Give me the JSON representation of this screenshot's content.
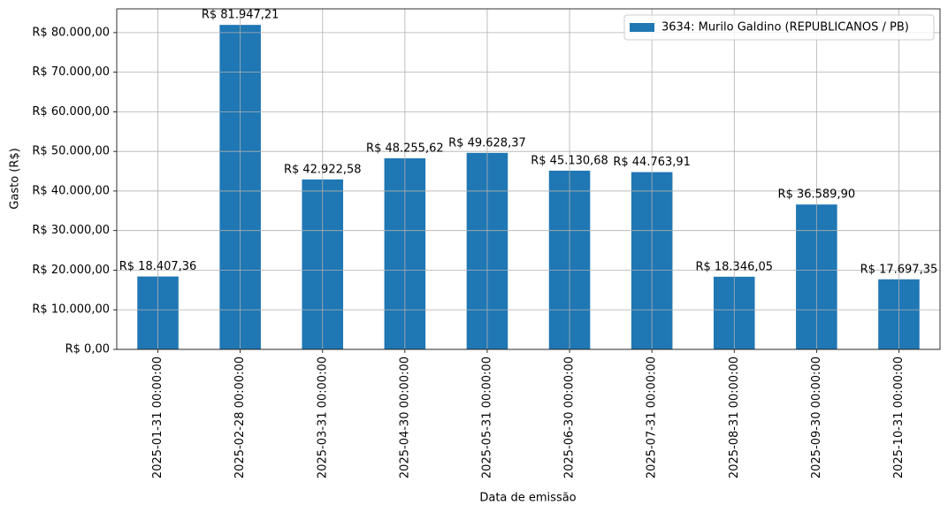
{
  "chart_data": {
    "type": "bar",
    "x_label": "Data de emissão",
    "y_label": "Gasto (R$)",
    "categories": [
      "2025-01-31 00:00:00",
      "2025-02-28 00:00:00",
      "2025-03-31 00:00:00",
      "2025-04-30 00:00:00",
      "2025-05-31 00:00:00",
      "2025-06-30 00:00:00",
      "2025-07-31 00:00:00",
      "2025-08-31 00:00:00",
      "2025-09-30 00:00:00",
      "2025-10-31 00:00:00"
    ],
    "series": [
      {
        "name": "3634: Murilo Galdino (REPUBLICANOS / PB)",
        "color": "#1f77b4",
        "values": [
          18407.36,
          81947.21,
          42922.58,
          48255.62,
          49628.37,
          45130.68,
          44763.91,
          18346.05,
          36589.9,
          17697.35
        ],
        "value_labels": [
          "R$ 18.407,36",
          "R$ 81.947,21",
          "R$ 42.922,58",
          "R$ 48.255,62",
          "R$ 49.628,37",
          "R$ 45.130,68",
          "R$ 44.763,91",
          "R$ 18.346,05",
          "R$ 36.589,90",
          "R$ 17.697,35"
        ]
      }
    ],
    "ylim": [
      0,
      86000
    ],
    "yticks": [
      {
        "value": 0,
        "label": "R$ 0,00"
      },
      {
        "value": 10000,
        "label": "R$ 10.000,00"
      },
      {
        "value": 20000,
        "label": "R$ 20.000,00"
      },
      {
        "value": 30000,
        "label": "R$ 30.000,00"
      },
      {
        "value": 40000,
        "label": "R$ 40.000,00"
      },
      {
        "value": 50000,
        "label": "R$ 50.000,00"
      },
      {
        "value": 60000,
        "label": "R$ 60.000,00"
      },
      {
        "value": 70000,
        "label": "R$ 70.000,00"
      },
      {
        "value": 80000,
        "label": "R$ 80.000,00"
      }
    ],
    "grid": true,
    "legend": "upper right"
  }
}
